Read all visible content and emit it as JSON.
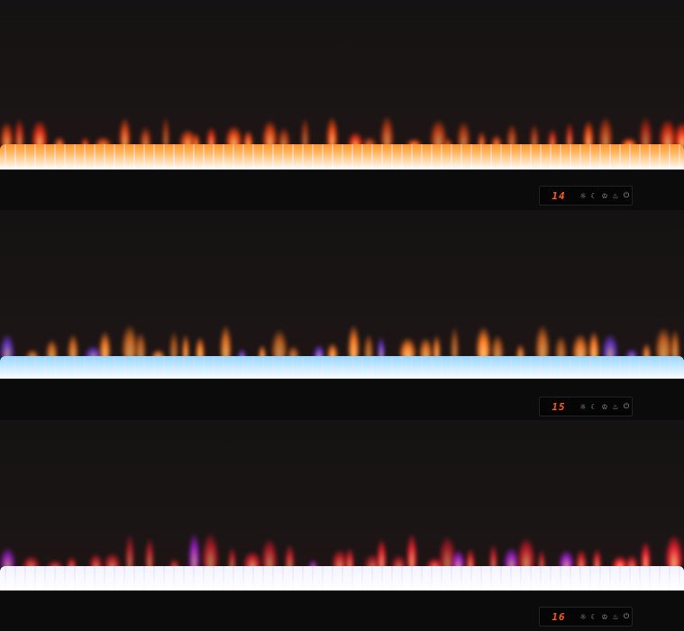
{
  "units": [
    {
      "display": "14",
      "flame_color": "#ff4a10",
      "bed_color": "#ff8a50",
      "accent": "#ff3010"
    },
    {
      "display": "15",
      "flame_color": "#ff7a20",
      "bed_color": "#8ab8ff",
      "accent": "#7a40ff"
    },
    {
      "display": "16",
      "flame_color": "#ff2030",
      "bed_color": "#d8d8ff",
      "accent": "#c020ff"
    }
  ],
  "panel_icons": [
    "sun-icon",
    "moon-icon",
    "crown-icon",
    "flame-icon",
    "power-icon"
  ]
}
